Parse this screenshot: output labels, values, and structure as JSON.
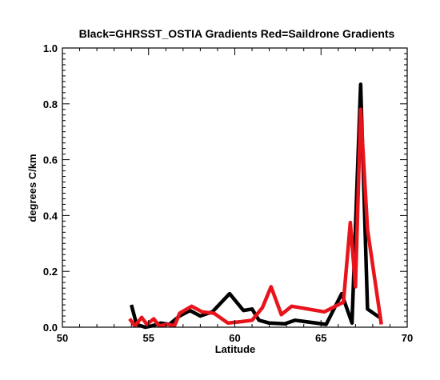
{
  "chart_data": {
    "type": "line",
    "title": "Black=GHRSST_OSTIA Gradients Red=Saildrone Gradients",
    "xlabel": "Latitude",
    "ylabel": "degrees C/km",
    "xlim": [
      50,
      70
    ],
    "ylim": [
      0.0,
      1.0
    ],
    "x_ticks": [
      "50",
      "55",
      "60",
      "65",
      "70"
    ],
    "y_ticks": [
      "0.0",
      "0.2",
      "0.4",
      "0.6",
      "0.8",
      "1.0"
    ],
    "grid": false,
    "legend": "none",
    "series": [
      {
        "color": "#000000",
        "x": [
          54.0,
          54.3,
          54.8,
          55.2,
          55.7,
          56.2,
          56.8,
          57.4,
          58.0,
          58.7,
          59.7,
          60.5,
          61.0,
          61.4,
          62.0,
          62.9,
          63.5,
          65.3,
          66.2,
          66.8,
          67.3,
          67.7,
          68.4
        ],
        "y": [
          0.08,
          0.01,
          0.0,
          0.005,
          0.015,
          0.01,
          0.04,
          0.06,
          0.04,
          0.055,
          0.12,
          0.06,
          0.065,
          0.025,
          0.015,
          0.012,
          0.025,
          0.01,
          0.12,
          0.015,
          0.87,
          0.065,
          0.035
        ]
      },
      {
        "color": "#e8141c",
        "x": [
          53.9,
          54.2,
          54.6,
          54.9,
          55.3,
          55.6,
          56.1,
          56.5,
          56.8,
          57.5,
          58.1,
          58.8,
          59.6,
          60.4,
          61.0,
          61.6,
          62.1,
          62.7,
          63.3,
          65.2,
          66.3,
          66.7,
          67.0,
          67.3,
          67.7,
          68.5
        ],
        "y": [
          0.03,
          0.005,
          0.035,
          0.01,
          0.03,
          0.005,
          0.01,
          0.005,
          0.05,
          0.075,
          0.055,
          0.05,
          0.015,
          0.02,
          0.025,
          0.07,
          0.145,
          0.045,
          0.075,
          0.055,
          0.09,
          0.375,
          0.145,
          0.78,
          0.35,
          0.01
        ]
      }
    ]
  }
}
